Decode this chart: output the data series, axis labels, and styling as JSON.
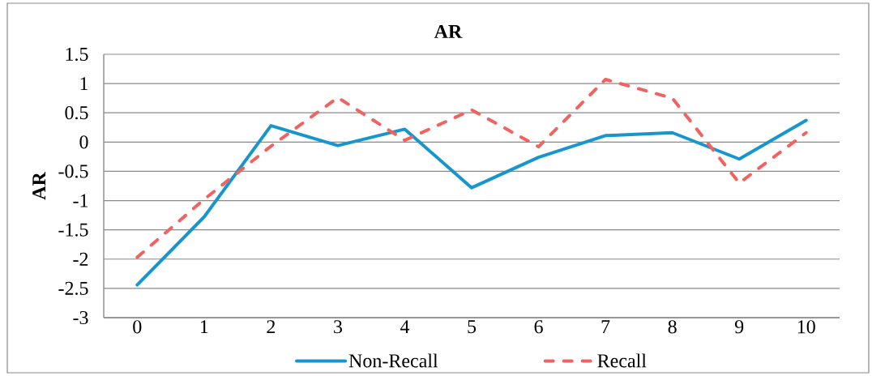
{
  "chart_data": {
    "type": "line",
    "title": "AR",
    "ylabel": "AR",
    "categories": [
      "0",
      "1",
      "2",
      "3",
      "4",
      "5",
      "6",
      "7",
      "8",
      "9",
      "10"
    ],
    "series": [
      {
        "name": "Non-Recall",
        "color": "#1796cd",
        "line_style": "solid",
        "values": [
          -2.44,
          -1.28,
          0.28,
          -0.06,
          0.22,
          -0.78,
          -0.26,
          0.11,
          0.16,
          -0.29,
          0.37
        ]
      },
      {
        "name": "Recall",
        "color": "#ef6360",
        "line_style": "dashed",
        "values": [
          -1.97,
          -0.98,
          -0.07,
          0.76,
          0.03,
          0.55,
          -0.08,
          1.07,
          0.75,
          -0.7,
          0.16
        ]
      }
    ],
    "ylim": [
      -3,
      1.5
    ],
    "yticks": [
      -3,
      -2.5,
      -2,
      -1.5,
      -1,
      -0.5,
      0,
      0.5,
      1,
      1.5
    ],
    "grid": "y",
    "legend": "bottom",
    "marker": "none"
  }
}
